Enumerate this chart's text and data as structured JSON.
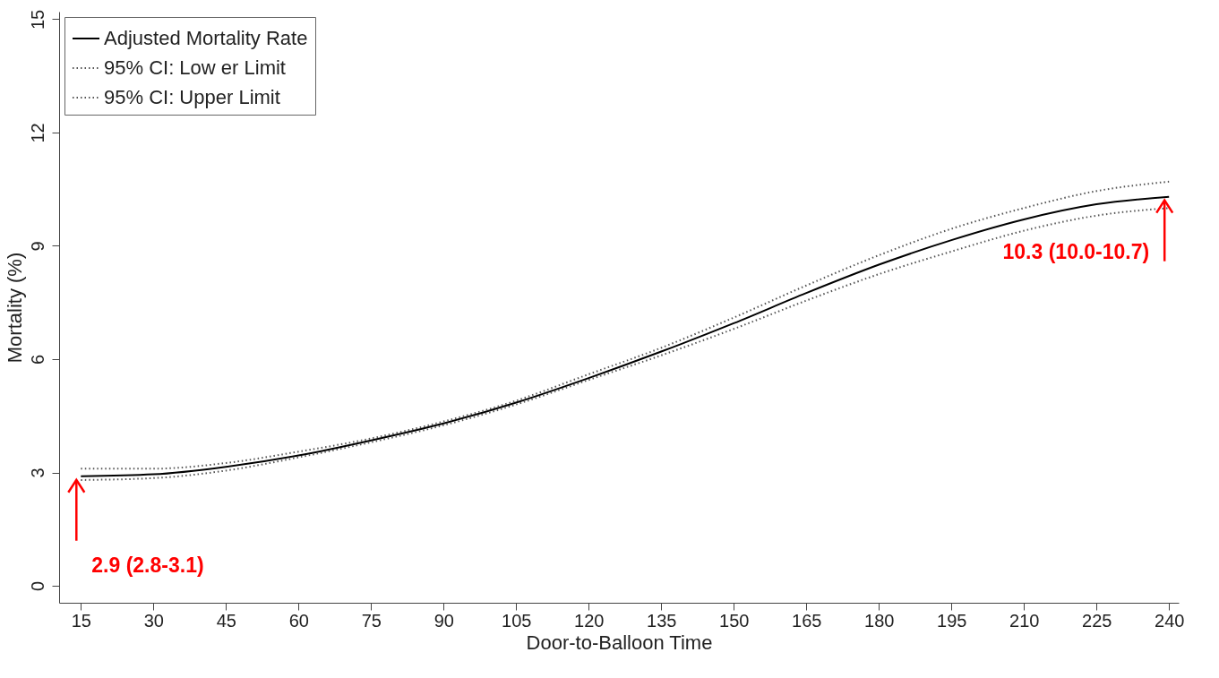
{
  "chart_data": {
    "type": "line",
    "xlabel": "Door-to-Balloon Time",
    "ylabel": "Mortality (%)",
    "x": [
      15,
      30,
      45,
      60,
      75,
      90,
      105,
      120,
      135,
      150,
      165,
      180,
      195,
      210,
      225,
      240
    ],
    "xlim": [
      10.5,
      242
    ],
    "xticks": [
      15,
      30,
      45,
      60,
      75,
      90,
      105,
      120,
      135,
      150,
      165,
      180,
      195,
      210,
      225,
      240
    ],
    "ylim": [
      -0.45,
      15.2
    ],
    "yticks": [
      0,
      3,
      6,
      9,
      12,
      15
    ],
    "series": [
      {
        "name": "Adjusted Mortality Rate",
        "color": "#000000",
        "line_style": "solid",
        "values": [
          2.9,
          2.95,
          3.15,
          3.45,
          3.85,
          4.3,
          4.85,
          5.5,
          6.2,
          6.95,
          7.75,
          8.5,
          9.15,
          9.7,
          10.1,
          10.3
        ]
      },
      {
        "name": "95% CI: Low er Limit",
        "color": "#555555",
        "line_style": "dotted",
        "values": [
          2.8,
          2.85,
          3.05,
          3.4,
          3.8,
          4.25,
          4.8,
          5.45,
          6.1,
          6.8,
          7.55,
          8.25,
          8.85,
          9.4,
          9.8,
          10.0
        ]
      },
      {
        "name": "95% CI: Upper Limit",
        "color": "#555555",
        "line_style": "dotted",
        "values": [
          3.1,
          3.1,
          3.25,
          3.55,
          3.9,
          4.35,
          4.9,
          5.6,
          6.3,
          7.1,
          7.95,
          8.75,
          9.45,
          10.0,
          10.45,
          10.7
        ]
      }
    ],
    "annotations": [
      {
        "text": "2.9 (2.8-3.1)",
        "x": 15,
        "y": 2.9
      },
      {
        "text": "10.3 (10.0-10.7)",
        "x": 240,
        "y": 10.3
      }
    ],
    "grid": false,
    "legend": "top left",
    "marker": "none"
  }
}
